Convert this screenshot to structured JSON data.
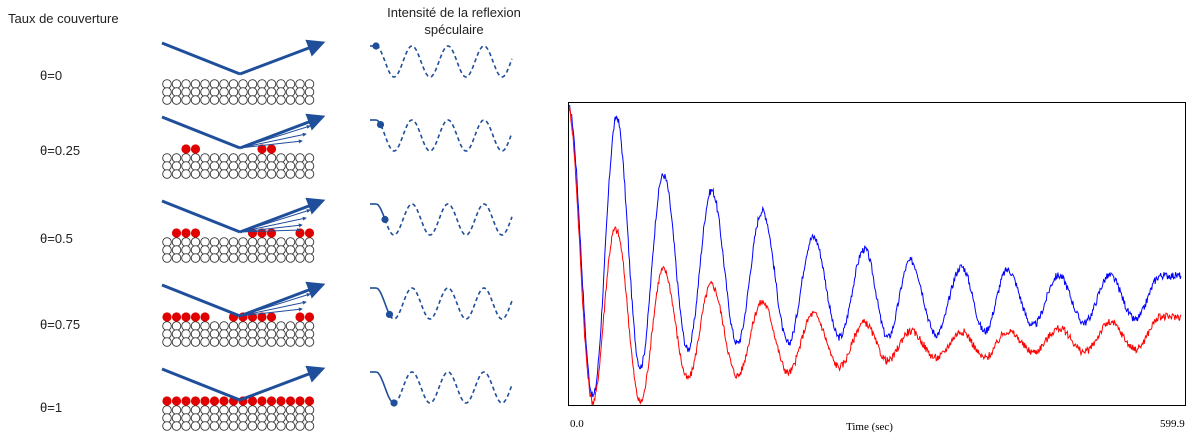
{
  "diagram": {
    "coverage_header": "Taux de couverture",
    "intensity_header_line1": "Intensité de la reflexion",
    "intensity_header_line2": "spéculaire",
    "rows": [
      {
        "theta": "θ=0",
        "coverage": 0,
        "phase": 0.0,
        "beams": 0
      },
      {
        "theta": "θ=0.25",
        "coverage": 0.25,
        "phase": 0.25,
        "beams": 3
      },
      {
        "theta": "θ=0.5",
        "coverage": 0.5,
        "phase": 0.5,
        "beams": 4
      },
      {
        "theta": "θ=0.75",
        "coverage": 0.75,
        "phase": 0.75,
        "beams": 3
      },
      {
        "theta": "θ=1",
        "coverage": 1,
        "phase": 1.0,
        "beams": 0
      }
    ],
    "colors": {
      "beam": "#1f4e9a",
      "atom_outline": "#333333",
      "adatom": "#e00000",
      "curve": "#1f4e9a"
    }
  },
  "chart_data": {
    "type": "line",
    "title": "",
    "xlabel": "Time (sec)",
    "ylabel": "",
    "x_tick_labels": [
      "0.0",
      "599.9"
    ],
    "xlim": [
      0.0,
      599.9
    ],
    "series": [
      {
        "color": "#0000ff",
        "peaks_x": [
          0,
          47,
          93,
          140,
          190,
          240,
          290,
          335,
          385,
          430,
          480,
          530,
          580
        ],
        "peaks_y": [
          1.0,
          0.97,
          0.77,
          0.72,
          0.65,
          0.56,
          0.52,
          0.48,
          0.46,
          0.45,
          0.43,
          0.43,
          0.43
        ],
        "troughs_y": [
          0.02,
          0.12,
          0.18,
          0.2,
          0.2,
          0.22,
          0.22,
          0.23,
          0.24,
          0.26,
          0.27,
          0.28
        ]
      },
      {
        "color": "#ff0000",
        "peaks_x": [
          0,
          47,
          93,
          140,
          190,
          240,
          290,
          335,
          385,
          430,
          480,
          530,
          580
        ],
        "peaks_y": [
          1.0,
          0.58,
          0.45,
          0.4,
          0.34,
          0.3,
          0.27,
          0.24,
          0.24,
          0.24,
          0.25,
          0.27,
          0.29
        ],
        "troughs_y": [
          0.0,
          0.0,
          0.08,
          0.09,
          0.1,
          0.12,
          0.14,
          0.15,
          0.15,
          0.17,
          0.17,
          0.18
        ]
      }
    ]
  }
}
